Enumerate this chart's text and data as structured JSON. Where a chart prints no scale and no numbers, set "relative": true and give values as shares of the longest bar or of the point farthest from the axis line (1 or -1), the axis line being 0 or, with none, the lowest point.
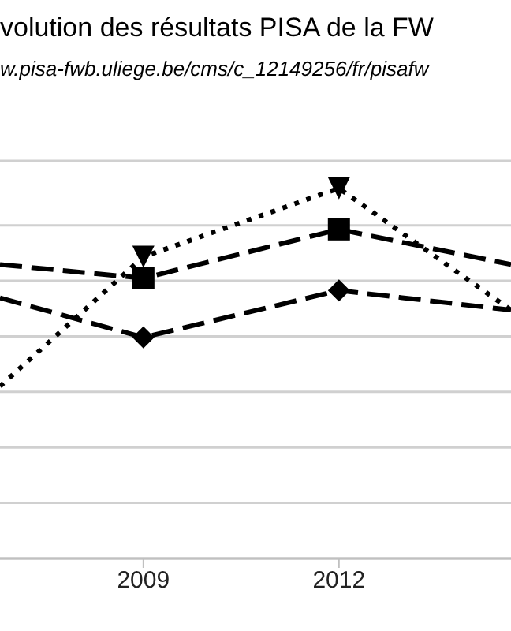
{
  "chart_data": {
    "type": "line",
    "title": "volution des résultats PISA de la FW",
    "subtitle": "w.pisa-fwb.uliege.be/cms/c_12149256/fr/pisafw",
    "x": [
      2006.8,
      2009,
      2012,
      2014.64
    ],
    "xlim": [
      2006.8,
      2014.64
    ],
    "xticks": [
      2009,
      2012
    ],
    "relative": true,
    "grid": "y",
    "legend": false,
    "series": [
      {
        "color": "#000000",
        "marker": "triangle",
        "line_style": "dotted",
        "values": [
          0.465,
          0.815,
          1,
          0.671
        ]
      },
      {
        "color": "#000000",
        "marker": "square",
        "line_style": "dashed",
        "values": [
          0.794,
          0.757,
          0.889,
          0.794
        ]
      },
      {
        "color": "#000000",
        "marker": "diamond",
        "line_style": "dashed",
        "values": [
          0.704,
          0.597,
          0.724,
          0.671
        ]
      }
    ]
  }
}
